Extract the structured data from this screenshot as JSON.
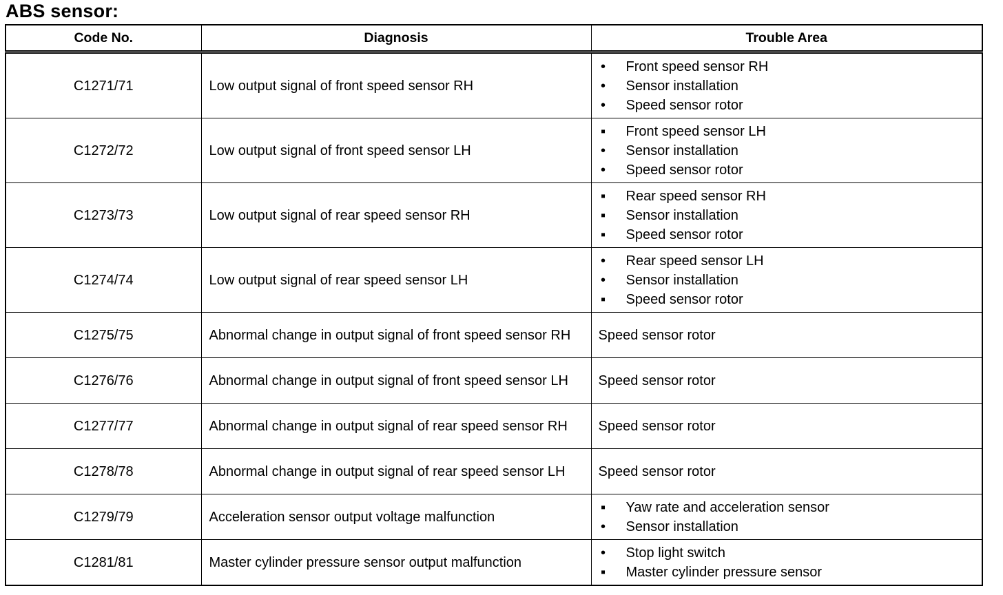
{
  "title": "ABS sensor:",
  "headers": {
    "code": "Code No.",
    "diagnosis": "Diagnosis",
    "area": "Trouble Area"
  },
  "rows": [
    {
      "code": "C1271/71",
      "diagnosis": "Low output signal of front speed sensor RH",
      "area": [
        "Front speed sensor RH",
        "Sensor installation",
        "Speed sensor rotor"
      ]
    },
    {
      "code": "C1272/72",
      "diagnosis": "Low output signal of front speed sensor LH",
      "area": [
        "Front speed sensor LH",
        "Sensor installation",
        "Speed sensor rotor"
      ]
    },
    {
      "code": "C1273/73",
      "diagnosis": "Low output signal of rear speed sensor RH",
      "area": [
        "Rear speed sensor RH",
        "Sensor installation",
        "Speed sensor rotor"
      ]
    },
    {
      "code": "C1274/74",
      "diagnosis": "Low output signal of rear speed sensor LH",
      "area": [
        "Rear speed sensor LH",
        "Sensor installation",
        "Speed sensor rotor"
      ]
    },
    {
      "code": "C1275/75",
      "diagnosis": "Abnormal change in output signal of front speed sensor RH",
      "area": "Speed sensor rotor"
    },
    {
      "code": "C1276/76",
      "diagnosis": "Abnormal change in output signal of front speed sensor LH",
      "area": "Speed sensor rotor"
    },
    {
      "code": "C1277/77",
      "diagnosis": "Abnormal change in output signal of rear speed sensor RH",
      "area": "Speed sensor rotor"
    },
    {
      "code": "C1278/78",
      "diagnosis": "Abnormal change in output signal of rear speed sensor LH",
      "area": "Speed sensor rotor"
    },
    {
      "code": "C1279/79",
      "diagnosis": "Acceleration sensor output voltage malfunction",
      "area": [
        "Yaw rate and acceleration sensor",
        "Sensor installation"
      ]
    },
    {
      "code": "C1281/81",
      "diagnosis": "Master cylinder pressure sensor output malfunction",
      "area": [
        "Stop light switch",
        "Master cylinder pressure sensor"
      ]
    }
  ]
}
